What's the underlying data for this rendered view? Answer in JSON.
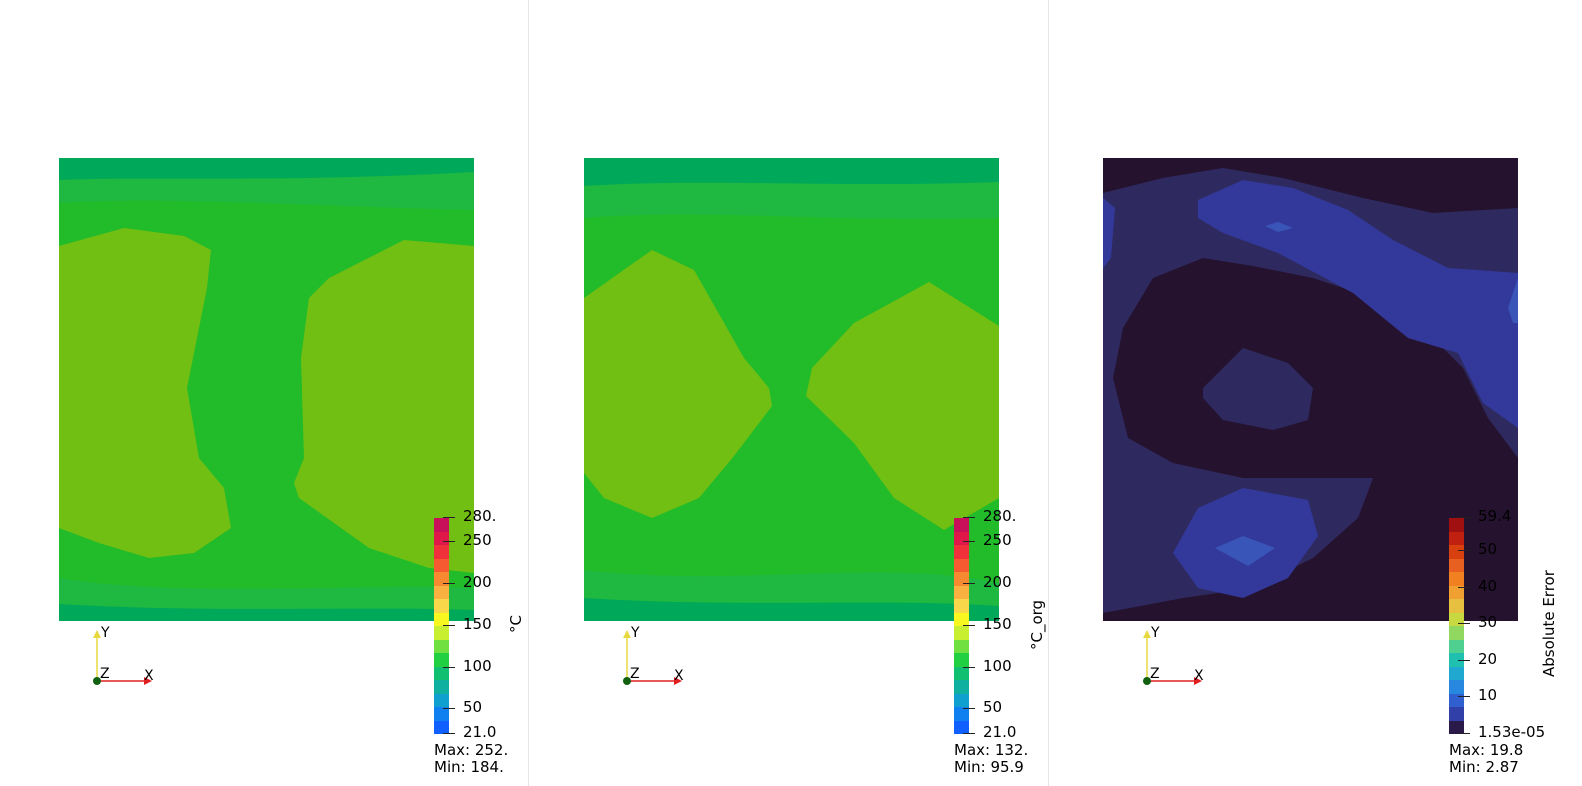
{
  "views": [
    {
      "id": "prediction",
      "colorbar": {
        "title": "°C",
        "ticks": [
          "280.",
          "250",
          "200",
          "150",
          "100",
          "50",
          "21.0"
        ],
        "max_label": "Max: 252.",
        "min_label": "Min: 184.",
        "colors": [
          "#c8105a",
          "#e0184a",
          "#f0303a",
          "#f55a30",
          "#f78a30",
          "#f8b040",
          "#f8d84a",
          "#f8f820",
          "#c8f030",
          "#70e040",
          "#20d040",
          "#10c070",
          "#10b0a0",
          "#10a0d0",
          "#1080f0",
          "#1060ff"
        ]
      },
      "field_colors": {
        "outer": "#00a85a",
        "band": "#20b840",
        "mid": "#22bb2a",
        "hot": "#70bf12"
      }
    },
    {
      "id": "ground-truth",
      "colorbar": {
        "title": "°C_org",
        "ticks": [
          "280.",
          "250",
          "200",
          "150",
          "100",
          "50",
          "21.0"
        ],
        "max_label": "Max: 132.",
        "min_label": "Min: 95.9",
        "colors": [
          "#c8105a",
          "#e0184a",
          "#f0303a",
          "#f55a30",
          "#f78a30",
          "#f8b040",
          "#f8d84a",
          "#f8f820",
          "#c8f030",
          "#70e040",
          "#20d040",
          "#10c070",
          "#10b0a0",
          "#10a0d0",
          "#1080f0",
          "#1060ff"
        ]
      },
      "field_colors": {
        "outer": "#00a85a",
        "band": "#20b840",
        "mid": "#22bb2a",
        "hot": "#70bf12"
      }
    },
    {
      "id": "absolute-error",
      "colorbar": {
        "title": "Absolute Error",
        "ticks": [
          "59.4",
          "50",
          "40",
          "30",
          "20",
          "10",
          "1.53e-05"
        ],
        "max_label": "Max: 19.8",
        "min_label": "Min: 2.87",
        "colors": [
          "#a01010",
          "#c02010",
          "#d84010",
          "#e86020",
          "#f08020",
          "#f0a030",
          "#e8c040",
          "#c8d840",
          "#90d860",
          "#50d090",
          "#20c0b0",
          "#20a8d0",
          "#2888e0",
          "#3060d0",
          "#3040a8",
          "#2a1a4a"
        ]
      },
      "field_colors": {
        "outer": "#25122e",
        "band": "#2e2a60",
        "mid": "#33399a",
        "hot": "#3a55b8"
      }
    }
  ],
  "axes_labels": {
    "x": "X",
    "y": "Y",
    "z": "Z"
  }
}
